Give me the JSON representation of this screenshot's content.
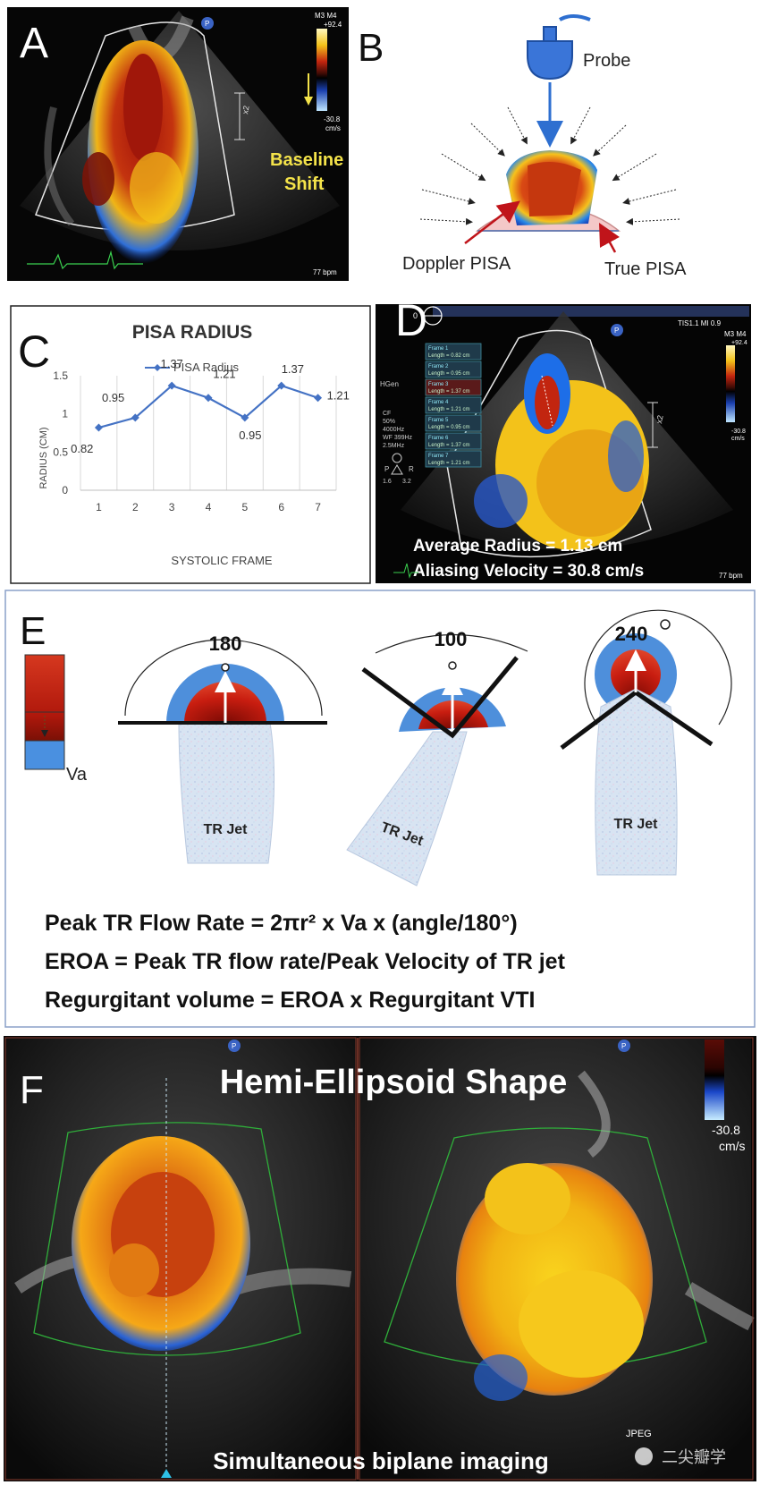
{
  "panelA": {
    "letter": "A",
    "scale_mode": "M3 M4",
    "scale_top": "+92.4",
    "scale_bottom": "-30.8",
    "scale_unit": "cm/s",
    "zoom": "x2",
    "shift_label_1": "Baseline",
    "shift_label_2": "Shift",
    "bpm": "77 bpm",
    "marker": "P"
  },
  "panelB": {
    "letter": "B",
    "probe_label": "Probe",
    "doppler_label": "Doppler PISA",
    "true_label": "True PISA"
  },
  "panelC": {
    "letter": "C",
    "title": "PISA RADIUS",
    "legend": "PISA Radius",
    "ylabel": "RADIUS (CM)",
    "xlabel": "SYSTOLIC FRAME",
    "yticks": [
      "0",
      "0.5",
      "1",
      "1.5"
    ]
  },
  "chart_data": {
    "type": "line",
    "title": "PISA RADIUS",
    "xlabel": "SYSTOLIC FRAME",
    "ylabel": "RADIUS (CM)",
    "categories": [
      "1",
      "2",
      "3",
      "4",
      "5",
      "6",
      "7"
    ],
    "series": [
      {
        "name": "PISA Radius",
        "values": [
          0.82,
          0.95,
          1.37,
          1.21,
          0.95,
          1.37,
          1.21
        ]
      }
    ],
    "data_labels": [
      "0.82",
      "0.95",
      "1.37",
      "1.21",
      "0.95",
      "1.37",
      "1.21"
    ],
    "ylim": [
      0,
      1.5
    ],
    "grid": "vertical",
    "legend": "top"
  },
  "panelD": {
    "letter": "D",
    "header": "TIS1.1   MI 0.9",
    "scale_mode": "M3 M4",
    "scale_top": "+92.4",
    "scale_bottom": "-30.8",
    "scale_unit": "cm/s",
    "zoom": "x2",
    "depth": "0",
    "hgen": "HGen",
    "cf_lines": [
      "CF",
      "50%",
      "4000Hz",
      "WF 399Hz",
      "2.5MHz"
    ],
    "p_label": "P",
    "r_label": "R",
    "range": [
      "1.6",
      "3.2"
    ],
    "frames": [
      {
        "name": "Frame 1",
        "len": "Length = 0.82 cm"
      },
      {
        "name": "Frame 2",
        "len": "Length = 0.95 cm"
      },
      {
        "name": "Frame 3",
        "len": "Length = 1.37 cm"
      },
      {
        "name": "Frame 4",
        "len": "Length = 1.21 cm"
      },
      {
        "name": "Frame 5",
        "len": "Length = 0.95 cm"
      },
      {
        "name": "Frame 6",
        "len": "Length = 1.37 cm"
      },
      {
        "name": "Frame 7",
        "len": "Length = 1.21 cm"
      }
    ],
    "avg_radius": "Average Radius = 1.13 cm",
    "aliasing": "Aliasing Velocity = 30.8  cm/s",
    "bpm": "77 bpm",
    "marker": "P"
  },
  "panelE": {
    "letter": "E",
    "va_label": "Va",
    "angle1": "180",
    "angle2": "100",
    "angle3": "240",
    "jet_label": "TR Jet",
    "formula1": "Peak TR Flow Rate = 2πr² x Va x (angle/180°)",
    "formula2": "EROA = Peak TR flow rate/Peak Velocity of TR jet",
    "formula3": "Regurgitant volume = EROA x Regurgitant VTI"
  },
  "panelF": {
    "letter": "F",
    "title": "Hemi-Ellipsoid Shape",
    "caption": "Simultaneous biplane imaging",
    "scale_bottom": "-30.8",
    "scale_unit": "cm/s",
    "jpeg": "JPEG",
    "watermark": "二尖瓣学",
    "marker": "P"
  },
  "colors": {
    "chart_line": "#4472c4",
    "doppler_red": "#b81b0b",
    "doppler_yellow": "#f3c21a",
    "doppler_blue": "#1d6ee8",
    "caption_yellow": "#f4e34a",
    "frame_border": "#8aa0c8"
  }
}
